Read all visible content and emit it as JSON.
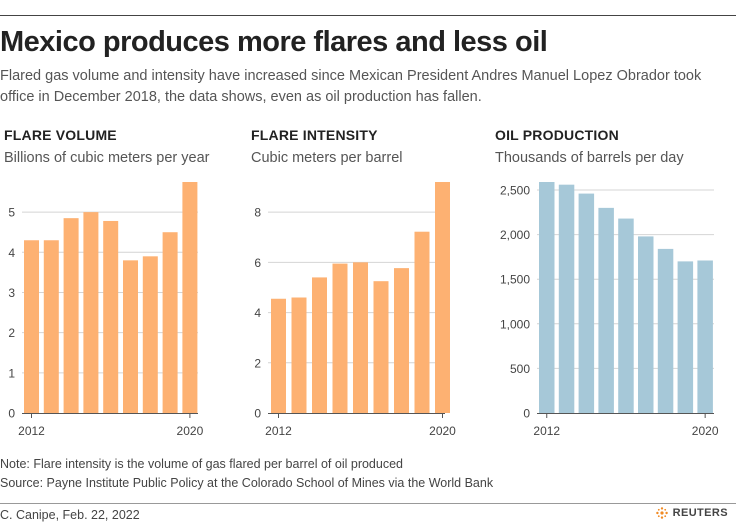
{
  "headline": "Mexico produces more flares and less oil",
  "subhead": "Flared gas volume and intensity have increased since Mexican President Andres Manuel Lopez Obrador took office in December 2018, the data shows, even as oil production has fallen.",
  "colors": {
    "orange": "#fdb172",
    "blue": "#a6c8d8",
    "grid": "#d4d4d4",
    "axis": "#555555"
  },
  "chart_data": [
    {
      "type": "bar",
      "title": "FLARE VOLUME",
      "ylabel": "Billions of cubic meters per year",
      "x": [
        2012,
        2013,
        2014,
        2015,
        2016,
        2017,
        2018,
        2019,
        2020
      ],
      "x_tick_labels": [
        "2012",
        "2020"
      ],
      "values": [
        4.3,
        4.3,
        4.85,
        5.0,
        4.78,
        3.8,
        3.9,
        4.5,
        5.75
      ],
      "yticks": [
        0,
        1,
        2,
        3,
        4,
        5
      ],
      "ytick_labels": [
        "0",
        "1",
        "2",
        "3",
        "4",
        "5"
      ],
      "ylim": [
        0,
        5.75
      ],
      "color": "orange"
    },
    {
      "type": "bar",
      "title": "FLARE INTENSITY",
      "ylabel": "Cubic meters per barrel",
      "x": [
        2012,
        2013,
        2014,
        2015,
        2016,
        2017,
        2018,
        2019,
        2020
      ],
      "x_tick_labels": [
        "2012",
        "2020"
      ],
      "values": [
        4.55,
        4.6,
        5.4,
        5.95,
        6.0,
        5.25,
        5.77,
        7.22,
        9.2
      ],
      "yticks": [
        0,
        2,
        4,
        6,
        8
      ],
      "ytick_labels": [
        "0",
        "2",
        "4",
        "6",
        "8"
      ],
      "ylim": [
        0,
        9.2
      ],
      "color": "orange"
    },
    {
      "type": "bar",
      "title": "OIL PRODUCTION",
      "ylabel": "Thousands of barrels per day",
      "x": [
        2012,
        2013,
        2014,
        2015,
        2016,
        2017,
        2018,
        2019,
        2020
      ],
      "x_tick_labels": [
        "2012",
        "2020"
      ],
      "values": [
        2590,
        2560,
        2460,
        2300,
        2180,
        1980,
        1840,
        1700,
        1710
      ],
      "yticks": [
        0,
        500,
        1000,
        1500,
        2000,
        2500
      ],
      "ytick_labels": [
        "0",
        "500",
        "1,000",
        "1,500",
        "2,000",
        "2,500"
      ],
      "ylim": [
        0,
        2590
      ],
      "color": "blue"
    }
  ],
  "note": "Note: Flare intensity is the volume of gas flared per barrel of oil produced",
  "source": "Source: Payne Institute Public Policy at the Colorado School of Mines via the World Bank",
  "credit": "C. Canipe, Feb. 22, 2022",
  "logo_text": "REUTERS"
}
